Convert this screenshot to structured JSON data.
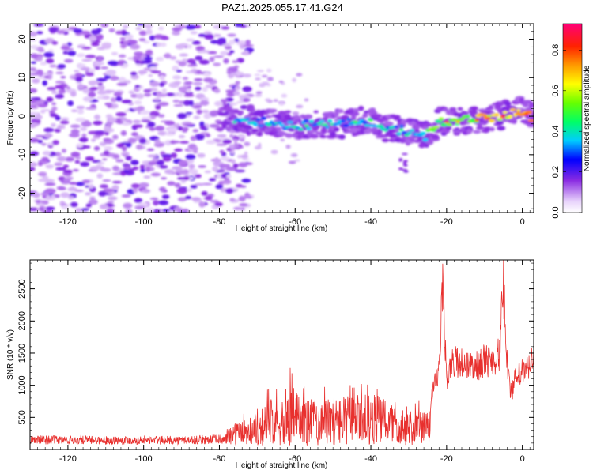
{
  "title": "PAZ1.2025.055.17.41.G24",
  "chart_data": [
    {
      "type": "heatmap",
      "xlabel": "Height of straight line (km)",
      "ylabel": "Frequency (Hz)",
      "xlim": [
        -130,
        3
      ],
      "ylim": [
        -25,
        24
      ],
      "xticks": [
        -120,
        -100,
        -80,
        -60,
        -40,
        -20,
        0
      ],
      "yticks": [
        -20,
        -10,
        0,
        10,
        20
      ],
      "colorbar": {
        "label": "Normalized spectral amplitude",
        "range": [
          0,
          0.93
        ],
        "ticks": [
          0.0,
          0.2,
          0.4,
          0.6,
          0.8
        ]
      },
      "ridge": {
        "x": [
          -78,
          -72,
          -66,
          -60,
          -54,
          -48,
          -42,
          -36,
          -30,
          -26,
          -22,
          -18,
          -14,
          -10,
          -6,
          -3,
          0,
          3
        ],
        "y": [
          -0.5,
          -1.0,
          -2.0,
          -2.5,
          -2.0,
          -2.0,
          -1.0,
          -3.0,
          -4.0,
          -5.5,
          -1.5,
          -1.5,
          -1.0,
          -0.5,
          0.0,
          1.0,
          1.5,
          -1.0
        ]
      }
    },
    {
      "type": "line",
      "xlabel": "Height of straight line (km)",
      "ylabel": "SNR (10 * v/v)",
      "xlim": [
        -130,
        3
      ],
      "ylim": [
        0,
        2950
      ],
      "xticks": [
        -120,
        -100,
        -80,
        -60,
        -40,
        -20,
        0
      ],
      "yticks": [
        500,
        1000,
        1500,
        2000,
        2500
      ],
      "series_color": "#e8302e",
      "envelope": {
        "x": [
          -130,
          -110,
          -90,
          -78,
          -75,
          -70,
          -65,
          -61,
          -58,
          -50,
          -45,
          -40,
          -35,
          -30,
          -25,
          -24.5,
          -23,
          -22,
          -21,
          -20,
          -18,
          -15,
          -12,
          -10,
          -8,
          -6,
          -5,
          -4,
          -3,
          -2,
          0,
          1,
          3
        ],
        "y": [
          180,
          170,
          170,
          200,
          280,
          450,
          700,
          850,
          650,
          650,
          700,
          720,
          600,
          500,
          420,
          700,
          1100,
          1300,
          2800,
          1200,
          1500,
          1450,
          1400,
          1500,
          1500,
          1600,
          2800,
          1500,
          950,
          1150,
          1300,
          1300,
          1550
        ]
      }
    }
  ]
}
